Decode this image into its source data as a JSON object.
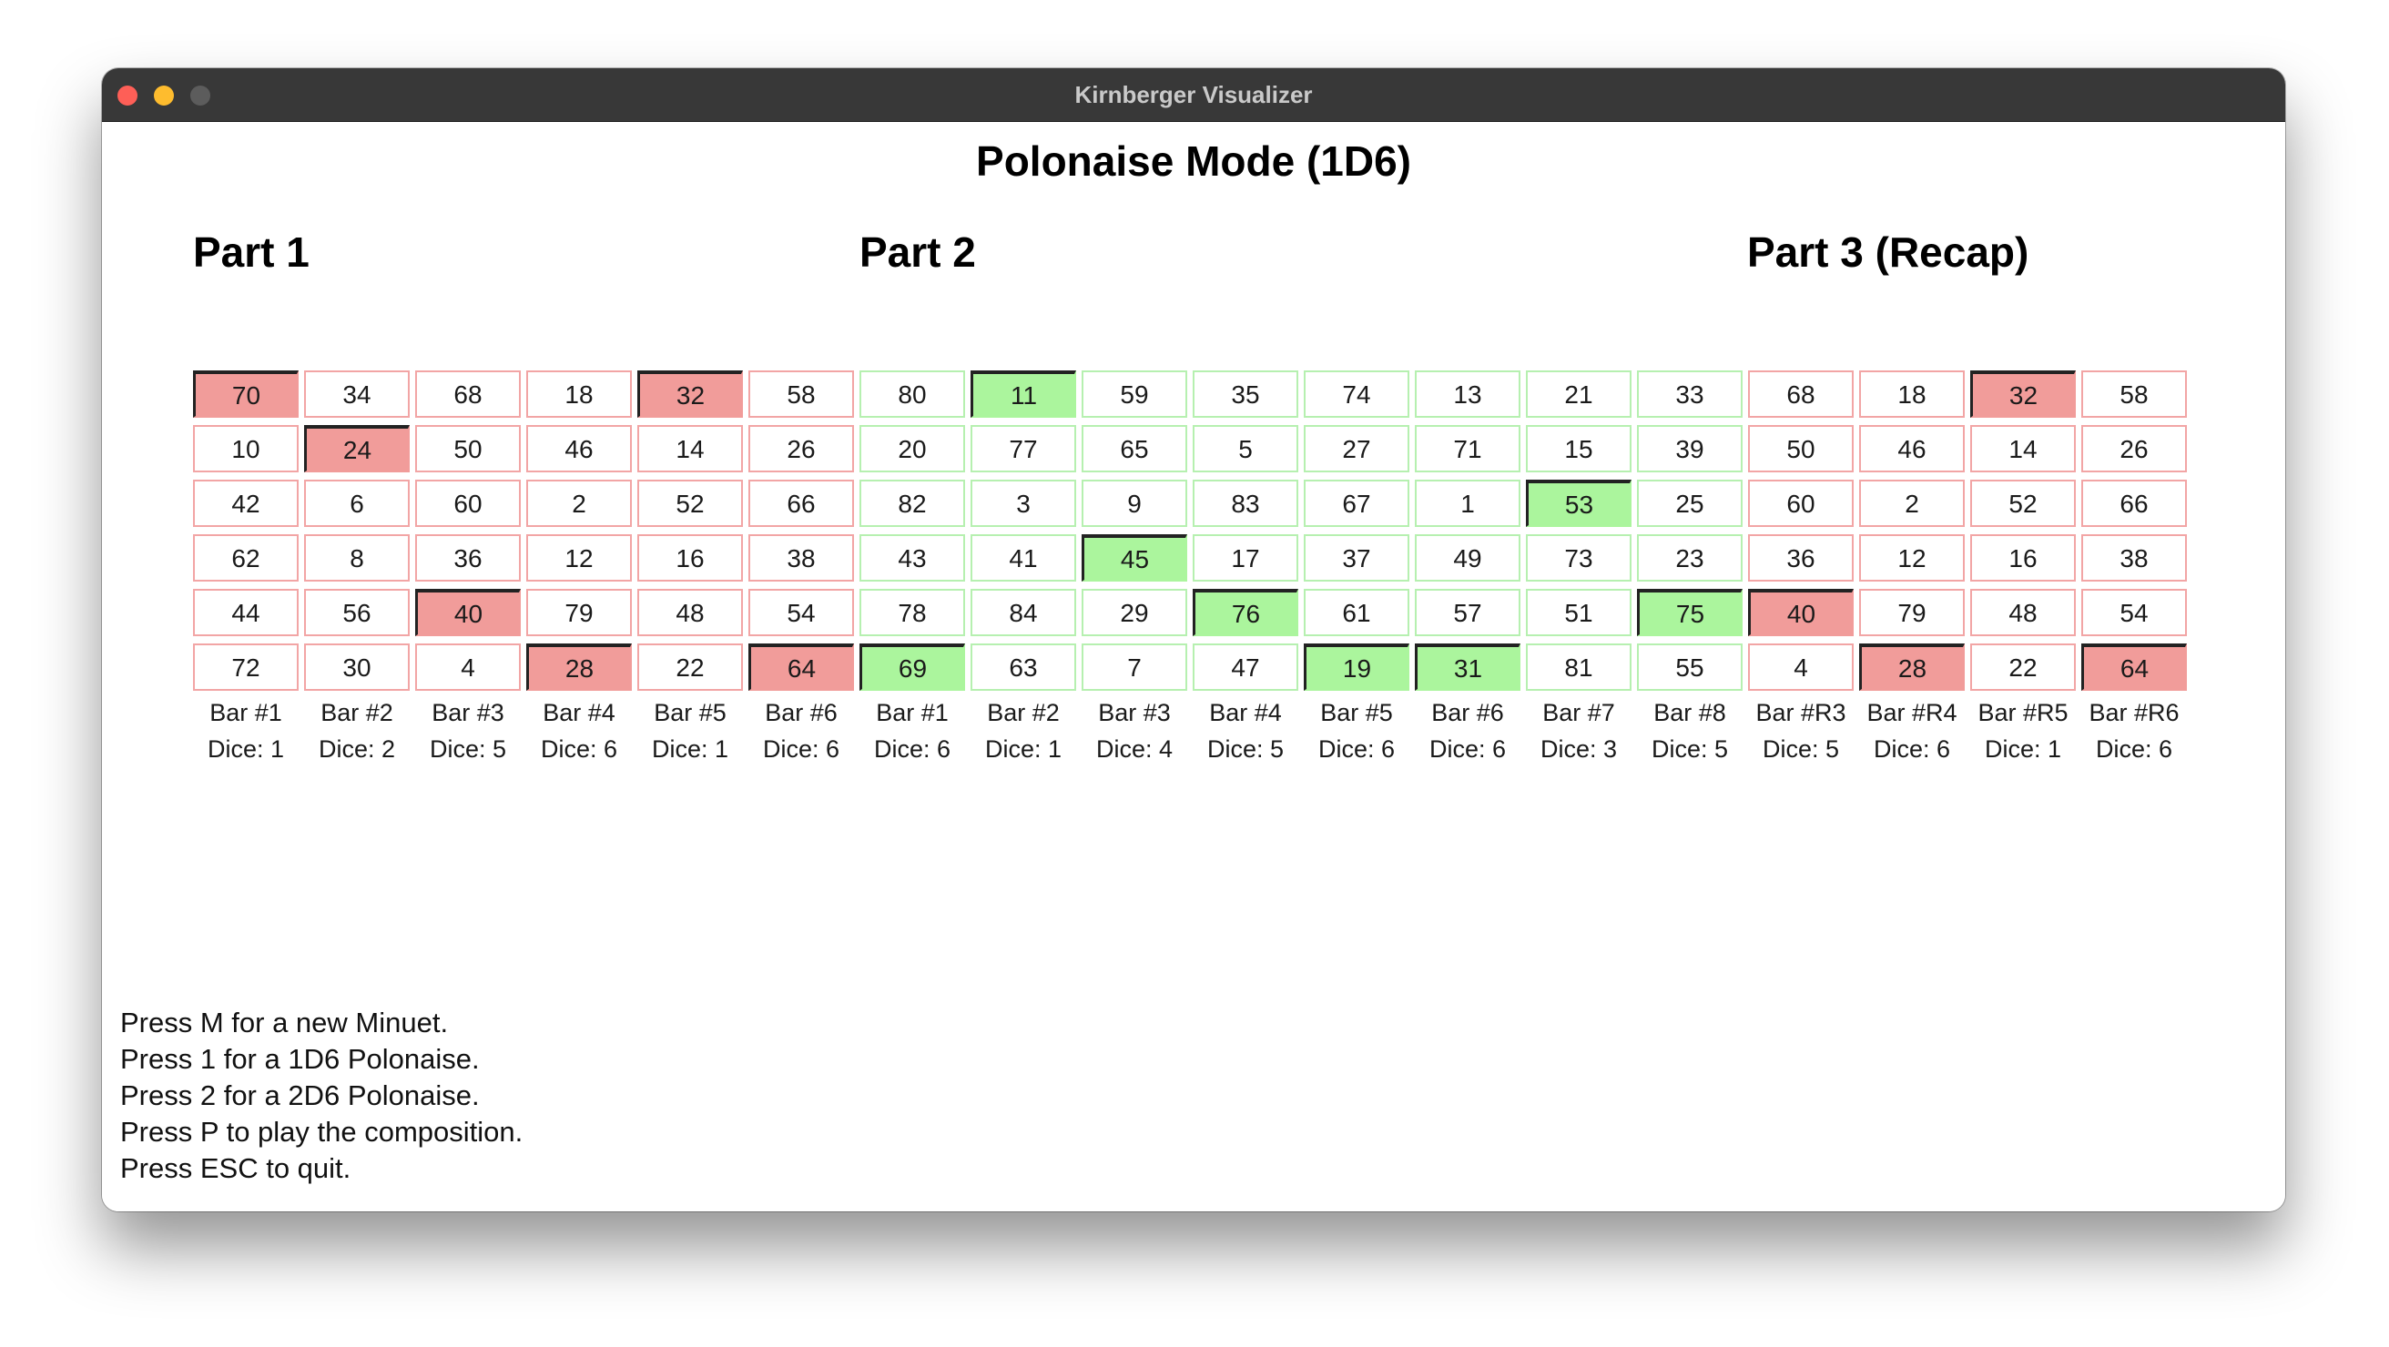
{
  "window": {
    "title": "Kirnberger Visualizer"
  },
  "mode_title": "Polonaise Mode (1D6)",
  "parts": [
    {
      "title": "Part 1",
      "columns": 6
    },
    {
      "title": "Part 2",
      "columns": 8
    },
    {
      "title": "Part 3 (Recap)",
      "columns": 4
    }
  ],
  "columns": [
    {
      "part": 1,
      "bar": "Bar #1",
      "dice": "Dice: 1",
      "values": [
        70,
        10,
        42,
        62,
        44,
        72
      ],
      "selected_row": 0
    },
    {
      "part": 1,
      "bar": "Bar #2",
      "dice": "Dice: 2",
      "values": [
        34,
        24,
        6,
        8,
        56,
        30
      ],
      "selected_row": 1
    },
    {
      "part": 1,
      "bar": "Bar #3",
      "dice": "Dice: 5",
      "values": [
        68,
        50,
        60,
        36,
        40,
        4
      ],
      "selected_row": 4
    },
    {
      "part": 1,
      "bar": "Bar #4",
      "dice": "Dice: 6",
      "values": [
        18,
        46,
        2,
        12,
        79,
        28
      ],
      "selected_row": 5
    },
    {
      "part": 1,
      "bar": "Bar #5",
      "dice": "Dice: 1",
      "values": [
        32,
        14,
        52,
        16,
        48,
        22
      ],
      "selected_row": 0
    },
    {
      "part": 1,
      "bar": "Bar #6",
      "dice": "Dice: 6",
      "values": [
        58,
        26,
        66,
        38,
        54,
        64
      ],
      "selected_row": 5
    },
    {
      "part": 2,
      "bar": "Bar #1",
      "dice": "Dice: 6",
      "values": [
        80,
        20,
        82,
        43,
        78,
        69
      ],
      "selected_row": 5
    },
    {
      "part": 2,
      "bar": "Bar #2",
      "dice": "Dice: 1",
      "values": [
        11,
        77,
        3,
        41,
        84,
        63
      ],
      "selected_row": 0
    },
    {
      "part": 2,
      "bar": "Bar #3",
      "dice": "Dice: 4",
      "values": [
        59,
        65,
        9,
        45,
        29,
        7
      ],
      "selected_row": 3
    },
    {
      "part": 2,
      "bar": "Bar #4",
      "dice": "Dice: 5",
      "values": [
        35,
        5,
        83,
        17,
        76,
        47
      ],
      "selected_row": 4
    },
    {
      "part": 2,
      "bar": "Bar #5",
      "dice": "Dice: 6",
      "values": [
        74,
        27,
        67,
        37,
        61,
        19
      ],
      "selected_row": 5
    },
    {
      "part": 2,
      "bar": "Bar #6",
      "dice": "Dice: 6",
      "values": [
        13,
        71,
        1,
        49,
        57,
        31
      ],
      "selected_row": 5
    },
    {
      "part": 2,
      "bar": "Bar #7",
      "dice": "Dice: 3",
      "values": [
        21,
        15,
        53,
        73,
        51,
        81
      ],
      "selected_row": 2
    },
    {
      "part": 2,
      "bar": "Bar #8",
      "dice": "Dice: 5",
      "values": [
        33,
        39,
        25,
        23,
        75,
        55
      ],
      "selected_row": 4
    },
    {
      "part": 3,
      "bar": "Bar #R3",
      "dice": "Dice: 5",
      "values": [
        68,
        50,
        60,
        36,
        40,
        4
      ],
      "selected_row": 4
    },
    {
      "part": 3,
      "bar": "Bar #R4",
      "dice": "Dice: 6",
      "values": [
        18,
        46,
        2,
        12,
        79,
        28
      ],
      "selected_row": 5
    },
    {
      "part": 3,
      "bar": "Bar #R5",
      "dice": "Dice: 1",
      "values": [
        32,
        14,
        52,
        16,
        48,
        22
      ],
      "selected_row": 0
    },
    {
      "part": 3,
      "bar": "Bar #R6",
      "dice": "Dice: 6",
      "values": [
        58,
        26,
        66,
        38,
        54,
        64
      ],
      "selected_row": 5
    }
  ],
  "colors": {
    "red_selected": "#f19c9a",
    "red_border": "#f2a5a5",
    "green_selected": "#abf59d",
    "green_border": "#b6f0b0"
  },
  "instructions": [
    "Press M for a new Minuet.",
    "Press 1 for a 1D6 Polonaise.",
    "Press 2 for a 2D6 Polonaise.",
    "Press P to play the composition.",
    "Press ESC to quit."
  ]
}
